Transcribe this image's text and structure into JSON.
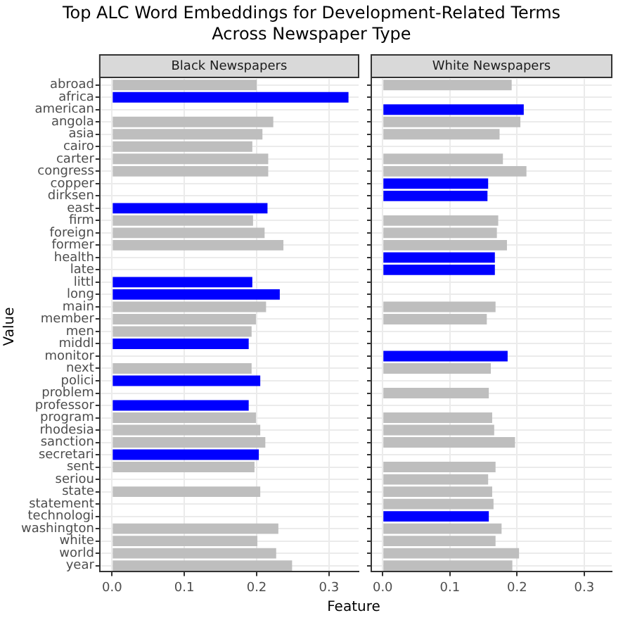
{
  "chart_data": [
    {
      "type": "bar",
      "orientation": "horizontal",
      "title": "Top ALC Word Embeddings for Development-Related Terms\nAcross Newspaper Type",
      "subtitle": "Black Newspapers",
      "xlabel": "Feature",
      "ylabel": "Value",
      "categories": [
        "abroad",
        "africa",
        "american",
        "angola",
        "asia",
        "cairo",
        "carter",
        "congress",
        "copper",
        "dirksen",
        "east",
        "firm",
        "foreign",
        "former",
        "health",
        "late",
        "littl",
        "long",
        "main",
        "member",
        "men",
        "middl",
        "monitor",
        "next",
        "polici",
        "problem",
        "professor",
        "program",
        "rhodesia",
        "sanction",
        "secretari",
        "sent",
        "seriou",
        "state",
        "statement",
        "technologi",
        "washington",
        "white",
        "world",
        "year"
      ],
      "values": [
        0.2,
        0.327,
        null,
        0.223,
        0.208,
        0.194,
        0.216,
        0.216,
        null,
        null,
        0.215,
        0.195,
        0.211,
        0.237,
        null,
        null,
        0.194,
        0.232,
        0.213,
        0.199,
        0.193,
        0.189,
        null,
        0.193,
        0.205,
        null,
        0.189,
        0.199,
        0.205,
        0.212,
        0.203,
        0.197,
        null,
        0.205,
        null,
        null,
        0.23,
        0.201,
        0.227,
        0.249
      ],
      "colors": [
        "#bebebe",
        "#0000ff",
        "#bebebe",
        "#bebebe",
        "#bebebe",
        "#bebebe",
        "#bebebe",
        "#bebebe",
        "#bebebe",
        "#bebebe",
        "#0000ff",
        "#bebebe",
        "#bebebe",
        "#bebebe",
        "#bebebe",
        "#bebebe",
        "#0000ff",
        "#0000ff",
        "#bebebe",
        "#bebebe",
        "#bebebe",
        "#0000ff",
        "#bebebe",
        "#bebebe",
        "#0000ff",
        "#bebebe",
        "#0000ff",
        "#bebebe",
        "#bebebe",
        "#bebebe",
        "#0000ff",
        "#bebebe",
        "#bebebe",
        "#bebebe",
        "#bebebe",
        "#bebebe",
        "#bebebe",
        "#bebebe",
        "#bebebe",
        "#bebebe"
      ],
      "xlim": [
        -0.017,
        0.341
      ],
      "xticks": [
        {
          "value": 0,
          "label": "0.0"
        },
        0.1,
        0.2,
        0.3
      ],
      "grid": true,
      "legend": false
    },
    {
      "type": "bar",
      "orientation": "horizontal",
      "subtitle": "White Newspapers",
      "categories": [
        null,
        null,
        null,
        null,
        null,
        null,
        null,
        null,
        null,
        null,
        null,
        null,
        null,
        null,
        null,
        null,
        null,
        null,
        null,
        null,
        null,
        null,
        null,
        null,
        null,
        null,
        null,
        null,
        null,
        null,
        null,
        null,
        null,
        null,
        null,
        null,
        null,
        null,
        null,
        null
      ],
      "values": [
        0.192,
        null,
        0.21,
        0.205,
        0.174,
        null,
        0.179,
        0.214,
        0.157,
        0.156,
        null,
        0.172,
        0.17,
        0.185,
        0.167,
        0.167,
        null,
        null,
        0.168,
        0.155,
        null,
        null,
        0.186,
        0.161,
        null,
        0.158,
        null,
        0.163,
        0.166,
        0.197,
        null,
        0.168,
        0.157,
        0.163,
        0.165,
        0.158,
        0.177,
        0.168,
        0.203,
        0.193
      ],
      "colors": [
        "#bebebe",
        "#bebebe",
        "#0000ff",
        "#bebebe",
        "#bebebe",
        "#bebebe",
        "#bebebe",
        "#bebebe",
        "#0000ff",
        "#0000ff",
        "#bebebe",
        "#bebebe",
        "#bebebe",
        "#bebebe",
        "#0000ff",
        "#0000ff",
        "#bebebe",
        "#bebebe",
        "#bebebe",
        "#bebebe",
        "#bebebe",
        "#bebebe",
        "#0000ff",
        "#bebebe",
        "#bebebe",
        "#bebebe",
        "#bebebe",
        "#bebebe",
        "#bebebe",
        "#bebebe",
        "#bebebe",
        "#bebebe",
        "#bebebe",
        "#bebebe",
        "#bebebe",
        "#0000ff",
        "#bebebe",
        "#bebebe",
        "#bebebe",
        "#bebebe"
      ],
      "xlim": [
        -0.017,
        0.341
      ],
      "xticks": [
        {
          "value": 0,
          "label": "0.0"
        },
        0.1,
        0.2,
        0.3
      ],
      "grid": true,
      "legend": false
    }
  ]
}
